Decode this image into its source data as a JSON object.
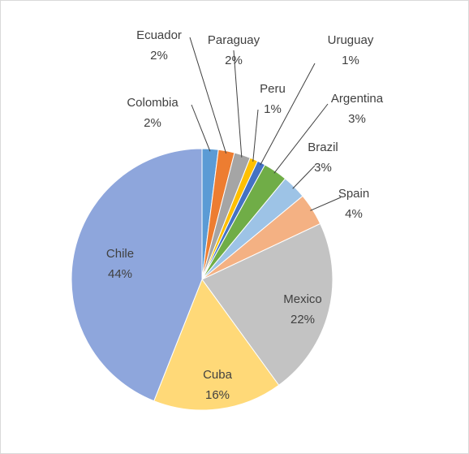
{
  "chart_data": {
    "type": "pie",
    "categories": [
      "Colombia",
      "Ecuador",
      "Paraguay",
      "Peru",
      "Uruguay",
      "Argentina",
      "Brazil",
      "Spain",
      "Mexico",
      "Cuba",
      "Chile"
    ],
    "values": [
      2,
      2,
      2,
      1,
      1,
      3,
      3,
      4,
      22,
      16,
      44
    ],
    "value_labels": [
      "2%",
      "2%",
      "2%",
      "1%",
      "1%",
      "3%",
      "3%",
      "4%",
      "22%",
      "16%",
      "44%"
    ],
    "colors": [
      "#5b9bd5",
      "#ed7d31",
      "#a5a5a5",
      "#ffc000",
      "#4472c4",
      "#70ad47",
      "#9dc3e6",
      "#f4b183",
      "#c3c3c3",
      "#ffd978",
      "#8ea6dc"
    ]
  }
}
